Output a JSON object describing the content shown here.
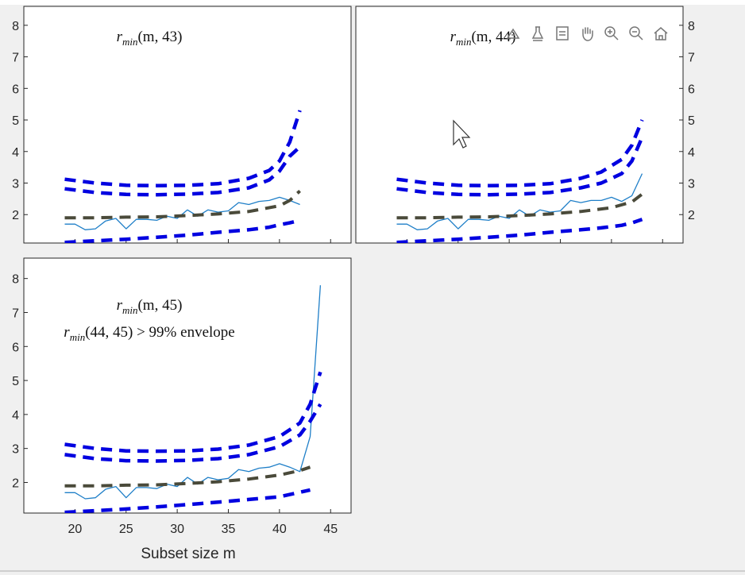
{
  "figure": {
    "xlabel": "Subset size m",
    "toolbar": [
      "brush-icon",
      "data-tip-icon",
      "legend-icon",
      "pan-icon",
      "zoom-in-icon",
      "zoom-out-icon",
      "home-icon"
    ]
  },
  "chart_data": [
    {
      "type": "line",
      "annotation_lines": [
        {
          "pre": "r",
          "sub": "min",
          "args": "(m, 43)"
        }
      ],
      "ytick_side": "left",
      "ylim": [
        1.1,
        8.6
      ],
      "yticks": [
        2,
        3,
        4,
        5,
        6,
        7,
        8
      ],
      "xlim": [
        15,
        47
      ],
      "xticks": [
        20,
        25,
        30,
        35,
        40,
        45
      ],
      "show_xtick_labels": false,
      "grid": false,
      "series": [
        {
          "role": "observed",
          "color": "#1f7fc8",
          "style": "solid",
          "x": [
            19,
            20,
            21,
            22,
            23,
            24,
            25,
            26,
            27,
            28,
            29,
            30,
            31,
            32,
            33,
            34,
            35,
            36,
            37,
            38,
            39,
            40,
            41,
            42
          ],
          "y": [
            1.7,
            1.7,
            1.52,
            1.55,
            1.8,
            1.88,
            1.55,
            1.85,
            1.85,
            1.82,
            1.95,
            1.88,
            2.15,
            1.95,
            2.15,
            2.08,
            2.12,
            2.38,
            2.32,
            2.42,
            2.45,
            2.55,
            2.45,
            2.32
          ]
        },
        {
          "role": "median",
          "color": "#4a4a3a",
          "style": "dashed",
          "x": [
            19,
            22,
            25,
            28,
            31,
            34,
            37,
            40,
            41,
            42
          ],
          "y": [
            1.9,
            1.9,
            1.92,
            1.93,
            1.97,
            2.02,
            2.1,
            2.28,
            2.45,
            2.75
          ]
        },
        {
          "role": "upper99",
          "color": "#0000e0",
          "style": "dashed",
          "x": [
            19,
            22,
            25,
            28,
            31,
            34,
            37,
            39,
            40,
            41,
            42
          ],
          "y": [
            3.12,
            3.0,
            2.93,
            2.92,
            2.93,
            2.98,
            3.15,
            3.4,
            3.7,
            4.3,
            5.3
          ]
        },
        {
          "role": "upper95",
          "color": "#0000e0",
          "style": "dashed",
          "x": [
            19,
            22,
            25,
            28,
            31,
            34,
            37,
            39,
            40,
            41,
            42
          ],
          "y": [
            2.82,
            2.7,
            2.64,
            2.63,
            2.65,
            2.7,
            2.85,
            3.1,
            3.38,
            3.85,
            4.15
          ]
        },
        {
          "role": "lower",
          "color": "#0000e0",
          "style": "dashed",
          "x": [
            19,
            22,
            25,
            28,
            31,
            34,
            37,
            39,
            40,
            41,
            42
          ],
          "y": [
            1.12,
            1.17,
            1.22,
            1.28,
            1.35,
            1.44,
            1.52,
            1.6,
            1.68,
            1.74,
            1.82
          ]
        }
      ]
    },
    {
      "type": "line",
      "annotation_lines": [
        {
          "pre": "r",
          "sub": "min",
          "args": "(m, 44)"
        }
      ],
      "ytick_side": "right",
      "ylim": [
        1.1,
        8.6
      ],
      "yticks": [
        2,
        3,
        4,
        5,
        6,
        7,
        8
      ],
      "xlim": [
        15,
        47
      ],
      "xticks": [
        20,
        25,
        30,
        35,
        40,
        45
      ],
      "show_xtick_labels": false,
      "grid": false,
      "series": [
        {
          "role": "observed",
          "color": "#1f7fc8",
          "style": "solid",
          "x": [
            19,
            20,
            21,
            22,
            23,
            24,
            25,
            26,
            27,
            28,
            29,
            30,
            31,
            32,
            33,
            34,
            35,
            36,
            37,
            38,
            39,
            40,
            41,
            42,
            43
          ],
          "y": [
            1.7,
            1.7,
            1.52,
            1.55,
            1.8,
            1.88,
            1.55,
            1.85,
            1.85,
            1.82,
            1.95,
            1.88,
            2.15,
            1.95,
            2.15,
            2.08,
            2.12,
            2.45,
            2.38,
            2.45,
            2.45,
            2.55,
            2.42,
            2.6,
            3.3
          ]
        },
        {
          "role": "median",
          "color": "#4a4a3a",
          "style": "dashed",
          "x": [
            19,
            22,
            25,
            28,
            31,
            34,
            37,
            40,
            42,
            43
          ],
          "y": [
            1.9,
            1.9,
            1.92,
            1.93,
            1.97,
            2.02,
            2.1,
            2.22,
            2.4,
            2.65
          ]
        },
        {
          "role": "upper99",
          "color": "#0000e0",
          "style": "dashed",
          "x": [
            19,
            22,
            25,
            28,
            31,
            34,
            37,
            39,
            41,
            42,
            43
          ],
          "y": [
            3.12,
            3.0,
            2.93,
            2.92,
            2.93,
            2.98,
            3.15,
            3.35,
            3.75,
            4.2,
            5.0
          ]
        },
        {
          "role": "upper95",
          "color": "#0000e0",
          "style": "dashed",
          "x": [
            19,
            22,
            25,
            28,
            31,
            34,
            37,
            39,
            41,
            42,
            43
          ],
          "y": [
            2.82,
            2.7,
            2.64,
            2.63,
            2.65,
            2.7,
            2.85,
            3.0,
            3.3,
            3.7,
            4.45
          ]
        },
        {
          "role": "lower",
          "color": "#0000e0",
          "style": "dashed",
          "x": [
            19,
            22,
            25,
            28,
            31,
            34,
            37,
            39,
            41,
            42,
            43
          ],
          "y": [
            1.12,
            1.17,
            1.22,
            1.28,
            1.35,
            1.44,
            1.52,
            1.58,
            1.66,
            1.74,
            1.85
          ]
        }
      ]
    },
    {
      "type": "line",
      "annotation_lines": [
        {
          "pre": "r",
          "sub": "min",
          "args": "(m, 45)"
        },
        {
          "pre": "r",
          "sub": "min",
          "args": "(44, 45) > 99% envelope"
        }
      ],
      "ytick_side": "left",
      "ylim": [
        1.1,
        8.6
      ],
      "yticks": [
        2,
        3,
        4,
        5,
        6,
        7,
        8
      ],
      "xlim": [
        15,
        47
      ],
      "xticks": [
        20,
        25,
        30,
        35,
        40,
        45
      ],
      "show_xtick_labels": true,
      "grid": false,
      "series": [
        {
          "role": "observed",
          "color": "#1f7fc8",
          "style": "solid",
          "x": [
            19,
            20,
            21,
            22,
            23,
            24,
            25,
            26,
            27,
            28,
            29,
            30,
            31,
            32,
            33,
            34,
            35,
            36,
            37,
            38,
            39,
            40,
            41,
            42,
            43,
            44
          ],
          "y": [
            1.7,
            1.7,
            1.52,
            1.55,
            1.8,
            1.88,
            1.55,
            1.85,
            1.85,
            1.82,
            1.95,
            1.88,
            2.15,
            1.95,
            2.15,
            2.08,
            2.12,
            2.38,
            2.32,
            2.42,
            2.45,
            2.55,
            2.45,
            2.32,
            3.35,
            7.8
          ]
        },
        {
          "role": "median",
          "color": "#4a4a3a",
          "style": "dashed",
          "x": [
            19,
            22,
            25,
            28,
            31,
            34,
            37,
            40,
            42,
            43
          ],
          "y": [
            1.9,
            1.9,
            1.92,
            1.93,
            1.97,
            2.02,
            2.1,
            2.22,
            2.35,
            2.45
          ]
        },
        {
          "role": "upper99",
          "color": "#0000e0",
          "style": "dashed",
          "x": [
            19,
            22,
            25,
            28,
            31,
            34,
            37,
            40,
            42,
            43,
            44
          ],
          "y": [
            3.12,
            3.0,
            2.93,
            2.92,
            2.93,
            2.98,
            3.1,
            3.35,
            3.75,
            4.3,
            5.25
          ]
        },
        {
          "role": "upper95",
          "color": "#0000e0",
          "style": "dashed",
          "x": [
            19,
            22,
            25,
            28,
            31,
            34,
            37,
            40,
            42,
            43,
            44
          ],
          "y": [
            2.82,
            2.7,
            2.64,
            2.63,
            2.65,
            2.7,
            2.82,
            3.05,
            3.4,
            3.8,
            4.3
          ]
        },
        {
          "role": "lower",
          "color": "#0000e0",
          "style": "dashed",
          "x": [
            19,
            22,
            25,
            28,
            31,
            34,
            37,
            40,
            43
          ],
          "y": [
            1.12,
            1.17,
            1.22,
            1.28,
            1.35,
            1.42,
            1.5,
            1.58,
            1.78
          ]
        }
      ]
    }
  ]
}
